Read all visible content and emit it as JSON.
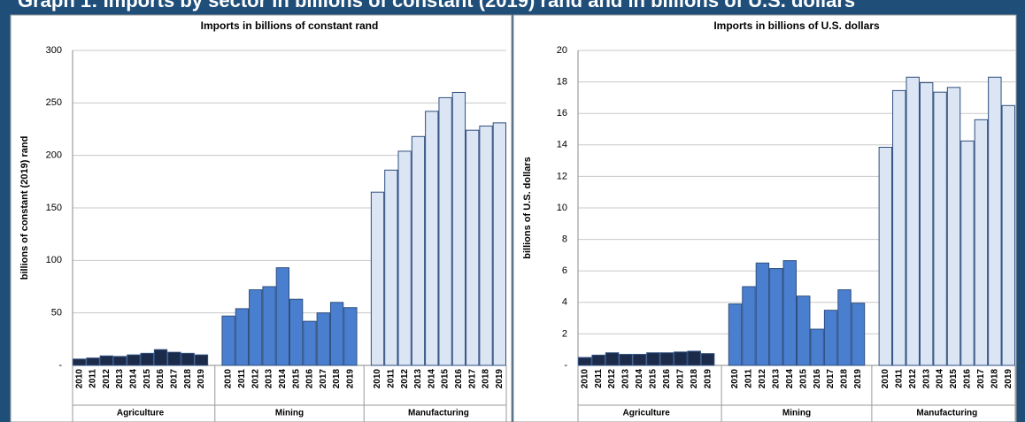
{
  "header": {
    "title": "Graph 1: Imports by sector in billions of constant (2019) rand and in billions of U.S. dollars"
  },
  "chart_data": [
    {
      "type": "bar",
      "title": "Imports in billions of constant rand",
      "y_label": "billions of constant (2019) rand",
      "categories": [
        "2010",
        "2011",
        "2012",
        "2013",
        "2014",
        "2015",
        "2016",
        "2017",
        "2018",
        "2019"
      ],
      "series": [
        {
          "name": "Agriculture",
          "color": "#1c2b4a",
          "values": [
            6,
            7,
            9,
            8.5,
            10,
            11.5,
            15,
            12.5,
            11.5,
            10
          ]
        },
        {
          "name": "Mining",
          "color": "#4a7fcf",
          "values": [
            47,
            54,
            72,
            75,
            93,
            63,
            42,
            50,
            60,
            55
          ]
        },
        {
          "name": "Manufacturing",
          "color": "#dbe5f4",
          "values": [
            165,
            186,
            204,
            218,
            242,
            255,
            260,
            224,
            228,
            231
          ]
        }
      ],
      "ylim": [
        0,
        300
      ],
      "yticks": [
        {
          "value": 0,
          "label": "-"
        },
        50,
        100,
        150,
        200,
        250,
        300
      ],
      "grid": true
    },
    {
      "type": "bar",
      "title": "Imports in billions of U.S. dollars",
      "y_label": "billions of U.S. dollars",
      "categories": [
        "2010",
        "2011",
        "2012",
        "2013",
        "2014",
        "2015",
        "2016",
        "2017",
        "2018",
        "2019"
      ],
      "series": [
        {
          "name": "Agriculture",
          "color": "#1c2b4a",
          "values": [
            0.5,
            0.65,
            0.8,
            0.7,
            0.7,
            0.8,
            0.8,
            0.85,
            0.9,
            0.75
          ]
        },
        {
          "name": "Mining",
          "color": "#4a7fcf",
          "values": [
            3.9,
            5.0,
            6.5,
            6.15,
            6.65,
            4.4,
            2.3,
            3.5,
            4.8,
            3.95
          ]
        },
        {
          "name": "Manufacturing",
          "color": "#dbe5f4",
          "values": [
            13.85,
            17.45,
            18.3,
            17.95,
            17.35,
            17.65,
            14.25,
            15.6,
            18.3,
            16.5
          ]
        }
      ],
      "ylim": [
        0,
        20
      ],
      "yticks": [
        {
          "value": 0,
          "label": "-"
        },
        2,
        4,
        6,
        8,
        10,
        12,
        14,
        16,
        18,
        20
      ],
      "grid": true
    }
  ]
}
